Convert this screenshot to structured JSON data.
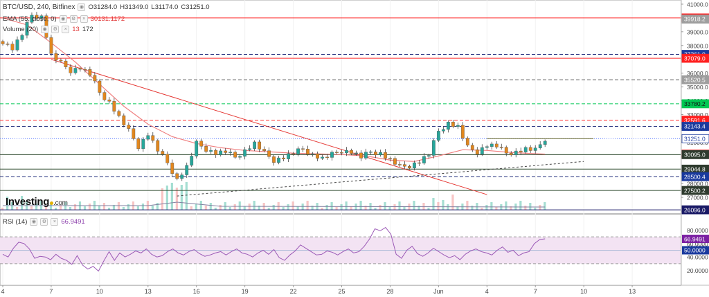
{
  "header": {
    "symbol": "BTC/USD, 240, Bitfinex",
    "open": "O31284.0",
    "high": "H31349.0",
    "low": "L31174.0",
    "close": "C31251.0",
    "ema_label": "EMA (55, close, 0)",
    "ema_value": "30131.1172",
    "volume_label": "Volume (20)",
    "volume_val1": "13",
    "volume_val2": "172",
    "rsi_label": "RSI (14)",
    "rsi_value": "66.9491"
  },
  "logo": {
    "text": "Investing",
    "suffix": ".com"
  },
  "colors": {
    "up": "#26a69a",
    "down": "#e1871e",
    "ema": "#f08080",
    "red_line": "#ff0000",
    "blue_dash": "#1f2a7a",
    "green_dash": "#00c853",
    "rsi": "#9b59b6",
    "rsi_band": "#f3e3f3",
    "vol_up": "#8fd6c7",
    "vol_down": "#f6b6b6"
  },
  "chart_data": {
    "type": "candlestick",
    "price_axis": {
      "ticks": [
        "41000.0",
        "40000.0",
        "39000.0",
        "38000.0",
        "37000.0",
        "36000.0",
        "35000.0",
        "34000.0",
        "33000.0",
        "32000.0",
        "31000.0",
        "30000.0",
        "29000.0",
        "28000.0",
        "27000.0",
        "26000.0"
      ],
      "range": [
        26000,
        41300
      ]
    },
    "x_ticks": [
      "4",
      "7",
      "10",
      "13",
      "16",
      "19",
      "22",
      "25",
      "28",
      "Jun",
      "4",
      "7",
      "10",
      "13"
    ],
    "price_labels": [
      {
        "value": "40000.3",
        "kind": "red"
      },
      {
        "value": "39918.2",
        "kind": "gray"
      },
      {
        "value": "37361.0",
        "kind": "blue"
      },
      {
        "value": "37079.0",
        "kind": "red"
      },
      {
        "value": "35520.5",
        "kind": "gray"
      },
      {
        "value": "33780.2",
        "kind": "green"
      },
      {
        "value": "32591.6",
        "kind": "red"
      },
      {
        "value": "32143.4",
        "kind": "blue"
      },
      {
        "value": "31251.0",
        "kind": "blue"
      },
      {
        "value": "30131.1",
        "kind": "red"
      },
      {
        "value": "30095.0",
        "kind": "dark"
      },
      {
        "value": "29044.8",
        "kind": "dark"
      },
      {
        "value": "28500.4",
        "kind": "blue"
      },
      {
        "value": "27500.2",
        "kind": "dark"
      },
      {
        "value": "26096.0",
        "kind": "darkblue"
      }
    ],
    "horizontal_levels": [
      {
        "price": 40000.3,
        "style": "red-solid"
      },
      {
        "price": 37361.0,
        "style": "blue-dash"
      },
      {
        "price": 37079.0,
        "style": "red-solid"
      },
      {
        "price": 35520.5,
        "style": "gray-dash"
      },
      {
        "price": 33780.2,
        "style": "green-dash"
      },
      {
        "price": 32591.6,
        "style": "red-dash"
      },
      {
        "price": 32143.4,
        "style": "blue-dash"
      },
      {
        "price": 31251.0,
        "style": "blue-dot"
      },
      {
        "price": 30095.0,
        "style": "dark-solid"
      },
      {
        "price": 29044.8,
        "style": "dark-solid"
      },
      {
        "price": 28500.4,
        "style": "blue-dash"
      },
      {
        "price": 27500.2,
        "style": "dark-solid"
      },
      {
        "price": 26096.0,
        "style": "darkblue-solid"
      }
    ],
    "price_path": [
      [
        0,
        38300
      ],
      [
        2,
        37800
      ],
      [
        4,
        38800
      ],
      [
        6,
        40200
      ],
      [
        8,
        40100
      ],
      [
        10,
        37300
      ],
      [
        12,
        36700
      ],
      [
        14,
        36200
      ],
      [
        16,
        36400
      ],
      [
        18,
        35900
      ],
      [
        20,
        34600
      ],
      [
        22,
        33900
      ],
      [
        24,
        32800
      ],
      [
        26,
        31800
      ],
      [
        28,
        30700
      ],
      [
        30,
        31600
      ],
      [
        32,
        30400
      ],
      [
        34,
        29500
      ],
      [
        36,
        28300
      ],
      [
        38,
        29200
      ],
      [
        40,
        30900
      ],
      [
        42,
        30500
      ],
      [
        44,
        30200
      ],
      [
        46,
        30300
      ],
      [
        48,
        29900
      ],
      [
        50,
        30400
      ],
      [
        52,
        30900
      ],
      [
        54,
        30200
      ],
      [
        56,
        29700
      ],
      [
        58,
        29900
      ],
      [
        60,
        30200
      ],
      [
        62,
        30500
      ],
      [
        64,
        30100
      ],
      [
        66,
        29800
      ],
      [
        68,
        30100
      ],
      [
        70,
        30400
      ],
      [
        72,
        30300
      ],
      [
        74,
        29900
      ],
      [
        76,
        30300
      ],
      [
        78,
        30200
      ],
      [
        80,
        29700
      ],
      [
        82,
        29200
      ],
      [
        84,
        29300
      ],
      [
        86,
        29600
      ],
      [
        88,
        30100
      ],
      [
        90,
        31800
      ],
      [
        92,
        32400
      ],
      [
        94,
        32100
      ],
      [
        96,
        30600
      ],
      [
        98,
        30300
      ],
      [
        100,
        30800
      ],
      [
        102,
        30700
      ],
      [
        104,
        30200
      ],
      [
        106,
        30300
      ],
      [
        108,
        30500
      ],
      [
        110,
        30400
      ],
      [
        112,
        31251
      ]
    ],
    "ema_path": [
      [
        0,
        40000
      ],
      [
        5,
        39500
      ],
      [
        10,
        38200
      ],
      [
        15,
        36800
      ],
      [
        20,
        35200
      ],
      [
        25,
        33600
      ],
      [
        30,
        32300
      ],
      [
        35,
        31400
      ],
      [
        40,
        30900
      ],
      [
        45,
        30600
      ],
      [
        50,
        30400
      ],
      [
        55,
        30300
      ],
      [
        60,
        30200
      ],
      [
        65,
        30150
      ],
      [
        70,
        30100
      ],
      [
        75,
        30000
      ],
      [
        80,
        29700
      ],
      [
        85,
        29600
      ],
      [
        90,
        30000
      ],
      [
        95,
        30450
      ],
      [
        100,
        30400
      ],
      [
        105,
        30250
      ],
      [
        112,
        30131
      ]
    ],
    "trendlines": [
      {
        "from": [
          10,
          37000
        ],
        "to": [
          100,
          27200
        ],
        "color": "red"
      },
      {
        "from": [
          36,
          27100
        ],
        "to": [
          120,
          29600
        ],
        "color": "dashed"
      }
    ],
    "rsi": {
      "ticks": [
        "80.0000",
        "60.0000",
        "40.0000",
        "20.0000"
      ],
      "labels": [
        {
          "value": "66.9491",
          "kind": "purple"
        },
        {
          "value": "50.0000",
          "kind": "blue"
        }
      ],
      "band": [
        30,
        70
      ],
      "values": [
        44,
        40,
        53,
        62,
        60,
        52,
        38,
        41,
        40,
        36,
        44,
        38,
        35,
        29,
        42,
        28,
        22,
        26,
        19,
        34,
        48,
        35,
        46,
        40,
        44,
        49,
        46,
        52,
        44,
        40,
        42,
        48,
        52,
        46,
        43,
        48,
        51,
        45,
        41,
        43,
        46,
        48,
        43,
        48,
        52,
        46,
        44,
        40,
        46,
        50,
        44,
        51,
        39,
        35,
        43,
        49,
        58,
        53,
        48,
        43,
        44,
        49,
        47,
        43,
        48,
        52,
        46,
        48,
        56,
        67,
        82,
        79,
        84,
        74,
        44,
        38,
        50,
        56,
        45,
        41,
        46,
        53,
        48,
        43,
        39,
        42,
        36,
        44,
        49,
        52,
        48,
        46,
        43,
        50,
        55,
        47,
        50,
        42,
        46,
        48,
        60,
        66,
        67
      ]
    }
  }
}
